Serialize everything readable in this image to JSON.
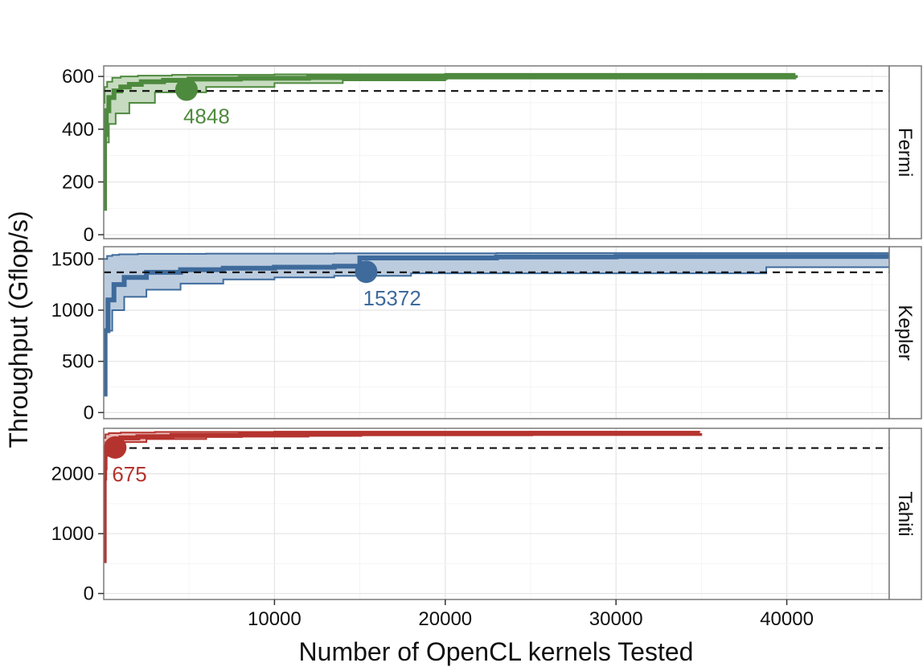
{
  "chart_data": {
    "type": "line",
    "xlabel": "Number of OpenCL kernels Tested",
    "ylabel": "Throughput (Gflop/s)",
    "xlim": [
      0,
      46000
    ],
    "x_ticks": [
      10000,
      20000,
      30000,
      40000
    ],
    "grid": true,
    "panels": [
      {
        "name": "Fermi",
        "color": "#4e8a3e",
        "fill": "#c3d9bc",
        "ylim": [
          -15,
          640
        ],
        "y_ticks": [
          0,
          200,
          400,
          600
        ],
        "baseline": 545,
        "marker": {
          "x": 4848,
          "y": 550,
          "label": "4848"
        },
        "series": [
          {
            "name": "median",
            "x": [
              0,
              50,
              150,
              300,
              600,
              1000,
              1500,
              2200,
              3500,
              5000,
              8000,
              12000,
              20000,
              30000,
              40500
            ],
            "y": [
              100,
              380,
              470,
              520,
              545,
              560,
              570,
              580,
              585,
              590,
              593,
              596,
              600,
              603,
              605
            ]
          },
          {
            "name": "upper",
            "x": [
              0,
              50,
              200,
              500,
              1000,
              2000,
              4000,
              10000,
              20000,
              40500
            ],
            "y": [
              500,
              560,
              580,
              595,
              600,
              603,
              606,
              608,
              610,
              610
            ]
          },
          {
            "name": "lower",
            "x": [
              0,
              100,
              300,
              700,
              1500,
              3000,
              6000,
              10000,
              14000,
              20000,
              40500
            ],
            "y": [
              100,
              350,
              420,
              460,
              500,
              540,
              560,
              575,
              585,
              592,
              600
            ]
          }
        ]
      },
      {
        "name": "Kepler",
        "color": "#3e6b9c",
        "fill": "#b8c9dd",
        "ylim": [
          -60,
          1620
        ],
        "y_ticks": [
          0,
          500,
          1000,
          1500
        ],
        "baseline": 1370,
        "marker": {
          "x": 15372,
          "y": 1375,
          "label": "15372"
        },
        "series": [
          {
            "name": "median",
            "x": [
              0,
              80,
              250,
              600,
              1200,
              2500,
              4500,
              7000,
              10000,
              13500,
              15000,
              23000,
              30000,
              46000
            ],
            "y": [
              180,
              800,
              1100,
              1250,
              1320,
              1370,
              1395,
              1410,
              1420,
              1430,
              1510,
              1520,
              1525,
              1530
            ]
          },
          {
            "name": "upper",
            "x": [
              0,
              200,
              500,
              900,
              2000,
              6000,
              13500,
              23000,
              46000
            ],
            "y": [
              1500,
              1530,
              1540,
              1545,
              1550,
              1552,
              1555,
              1558,
              1560
            ]
          },
          {
            "name": "lower",
            "x": [
              0,
              150,
              500,
              1200,
              2500,
              4500,
              7000,
              10000,
              13500,
              18000,
              38800,
              46000
            ],
            "y": [
              180,
              800,
              1000,
              1130,
              1200,
              1260,
              1300,
              1320,
              1335,
              1360,
              1420,
              1420
            ]
          }
        ]
      },
      {
        "name": "Tahiti",
        "color": "#b5332e",
        "fill": "#e9b6b3",
        "ylim": [
          -100,
          2760
        ],
        "y_ticks": [
          0,
          1000,
          2000
        ],
        "baseline": 2430,
        "marker": {
          "x": 675,
          "y": 2440,
          "label": "675"
        },
        "series": [
          {
            "name": "median",
            "x": [
              0,
              30,
              80,
              200,
              500,
              1000,
              2000,
              4000,
              8000,
              15000,
              25000,
              34900
            ],
            "y": [
              550,
              2100,
              2400,
              2500,
              2560,
              2600,
              2620,
              2640,
              2660,
              2670,
              2675,
              2680
            ]
          },
          {
            "name": "upper",
            "x": [
              0,
              100,
              300,
              1000,
              3000,
              10000,
              34900
            ],
            "y": [
              2600,
              2660,
              2680,
              2690,
              2700,
              2705,
              2710
            ]
          },
          {
            "name": "lower",
            "x": [
              0,
              50,
              150,
              400,
              1000,
              2500,
              6000,
              12000,
              34900
            ],
            "y": [
              550,
              1900,
              2300,
              2450,
              2530,
              2580,
              2620,
              2650,
              2665
            ]
          }
        ]
      }
    ]
  }
}
